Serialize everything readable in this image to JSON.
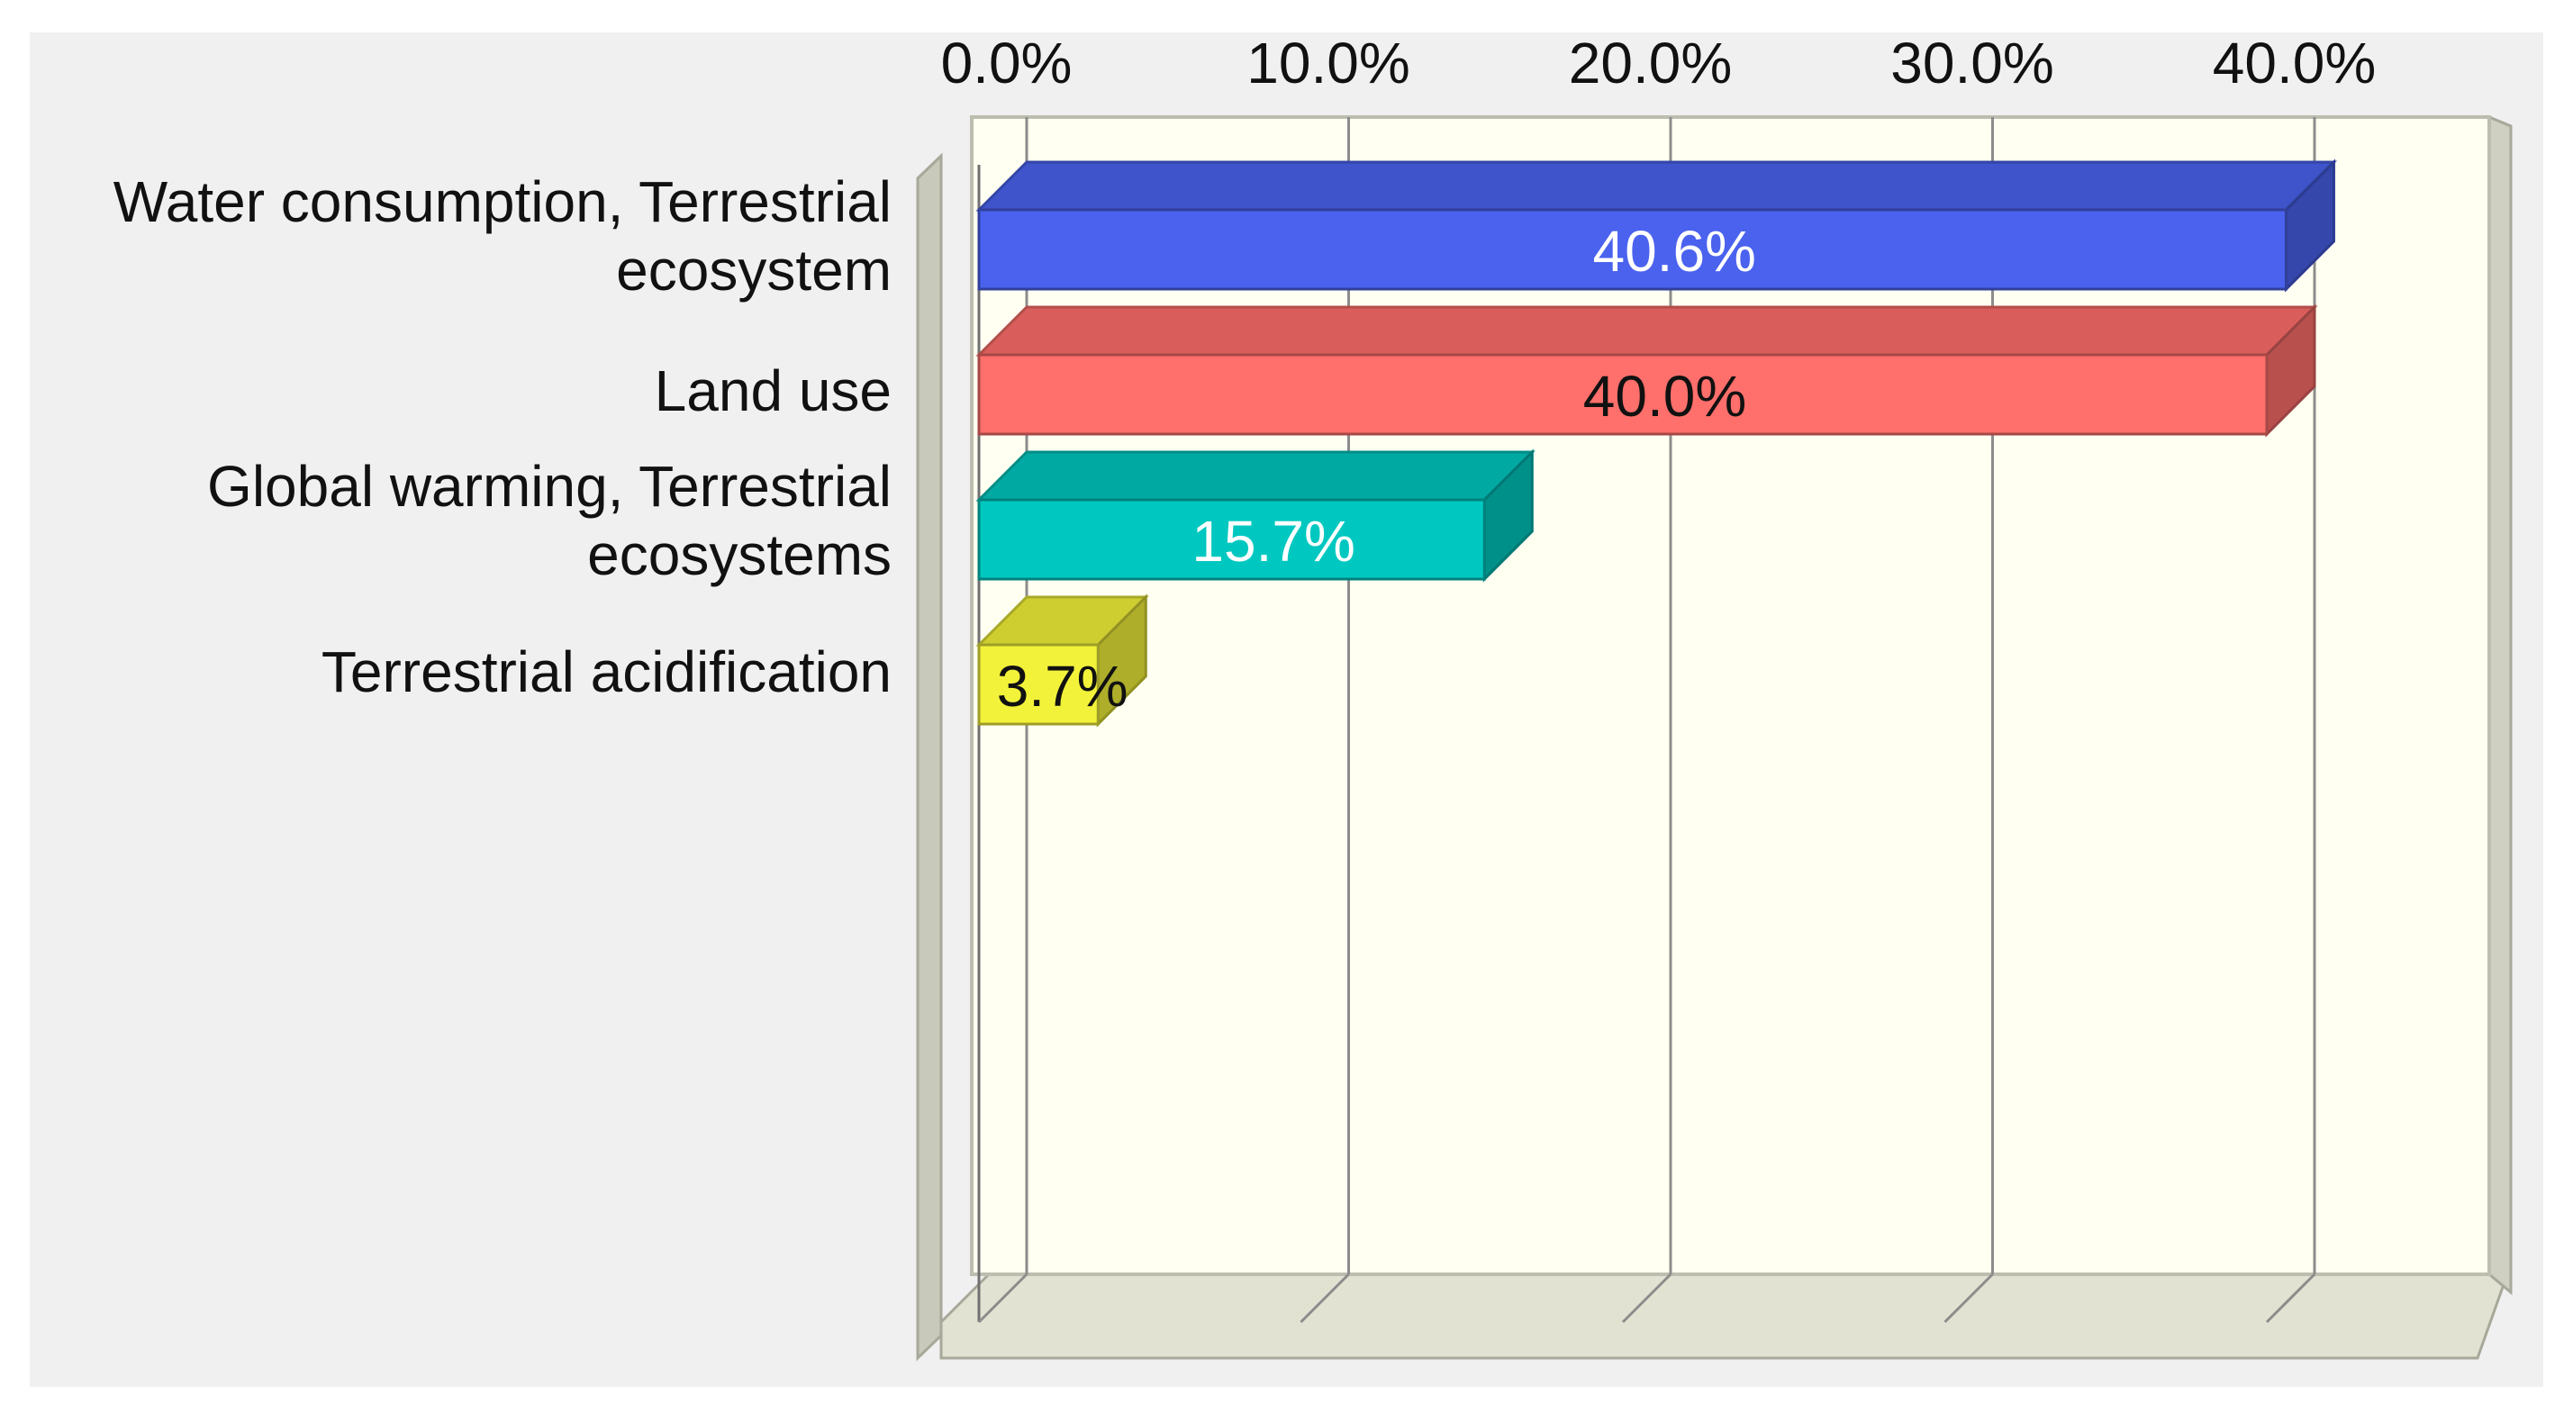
{
  "chart_data": {
    "type": "bar",
    "orientation": "horizontal",
    "style": "3d",
    "categories": [
      [
        "Water consumption, Terrestrial",
        "ecosystem"
      ],
      [
        "Land use"
      ],
      [
        "Global warming, Terrestrial",
        "ecosystems"
      ],
      [
        "Terrestrial acidification"
      ]
    ],
    "values": [
      40.6,
      40.0,
      15.7,
      3.7
    ],
    "data_labels": [
      "40.6%",
      "40.0%",
      "15.7%",
      "3.7%"
    ],
    "colors": [
      "#4a62ee",
      "#ff6f6b",
      "#00c8c0",
      "#f2f23a"
    ],
    "label_colors": [
      "#ffffff",
      "#111111",
      "#ffffff",
      "#111111"
    ],
    "x_ticks": [
      "0.0%",
      "10.0%",
      "20.0%",
      "30.0%",
      "40.0%"
    ],
    "xlim": [
      0,
      40
    ],
    "x_axis_position": "top",
    "grid": true,
    "legend": "none",
    "title": "",
    "xlabel": "",
    "ylabel": "",
    "background_color": "#f0f0f0",
    "plot_color": "#fffff2"
  }
}
